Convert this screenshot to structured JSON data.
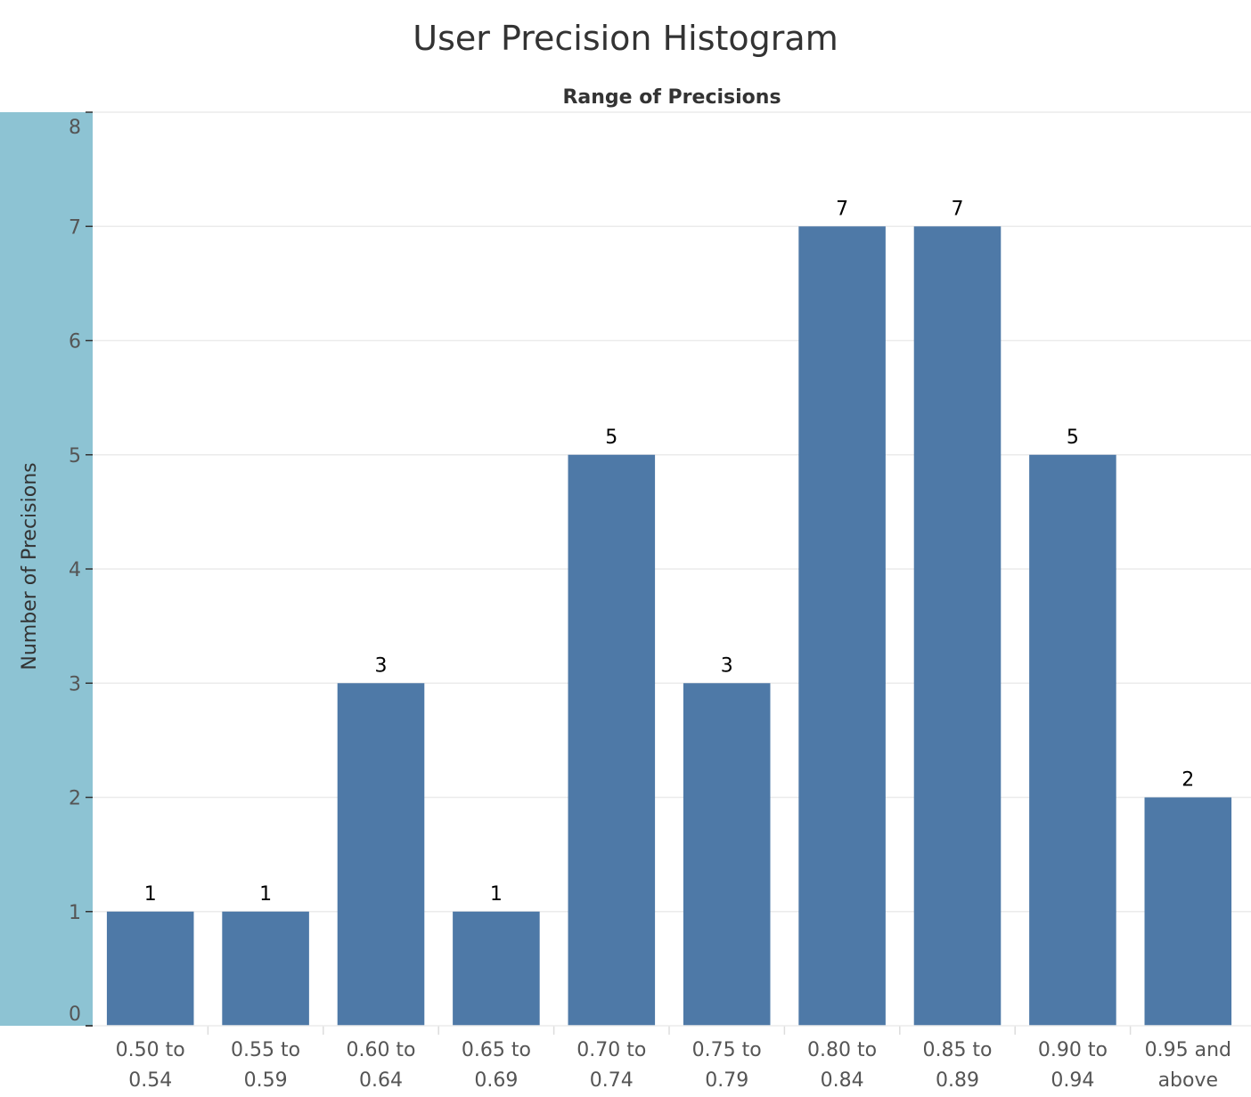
{
  "chart_data": {
    "type": "bar",
    "title": "User Precision Histogram",
    "column_header": "Range of Precisions",
    "xlabel": "",
    "ylabel": "Number of Precisions",
    "categories": [
      [
        "0.50 to",
        "0.54"
      ],
      [
        "0.55 to",
        "0.59"
      ],
      [
        "0.60 to",
        "0.64"
      ],
      [
        "0.65 to",
        "0.69"
      ],
      [
        "0.70 to",
        "0.74"
      ],
      [
        "0.75 to",
        "0.79"
      ],
      [
        "0.80 to",
        "0.84"
      ],
      [
        "0.85 to",
        "0.89"
      ],
      [
        "0.90 to",
        "0.94"
      ],
      [
        "0.95 and",
        "above"
      ]
    ],
    "values": [
      1,
      1,
      3,
      1,
      5,
      3,
      7,
      7,
      5,
      2
    ],
    "data_labels": [
      "1",
      "1",
      "3",
      "1",
      "5",
      "3",
      "7",
      "7",
      "5",
      "2"
    ],
    "ylim": [
      0,
      8
    ],
    "yticks": [
      "0",
      "1",
      "2",
      "3",
      "4",
      "5",
      "6",
      "7",
      "8"
    ],
    "grid": true,
    "legend": "none",
    "colors": {
      "bar": "#4e79a7",
      "axis_band": "#8dc3d3",
      "gridline": "#ebebeb",
      "axis_line": "#333333"
    }
  }
}
